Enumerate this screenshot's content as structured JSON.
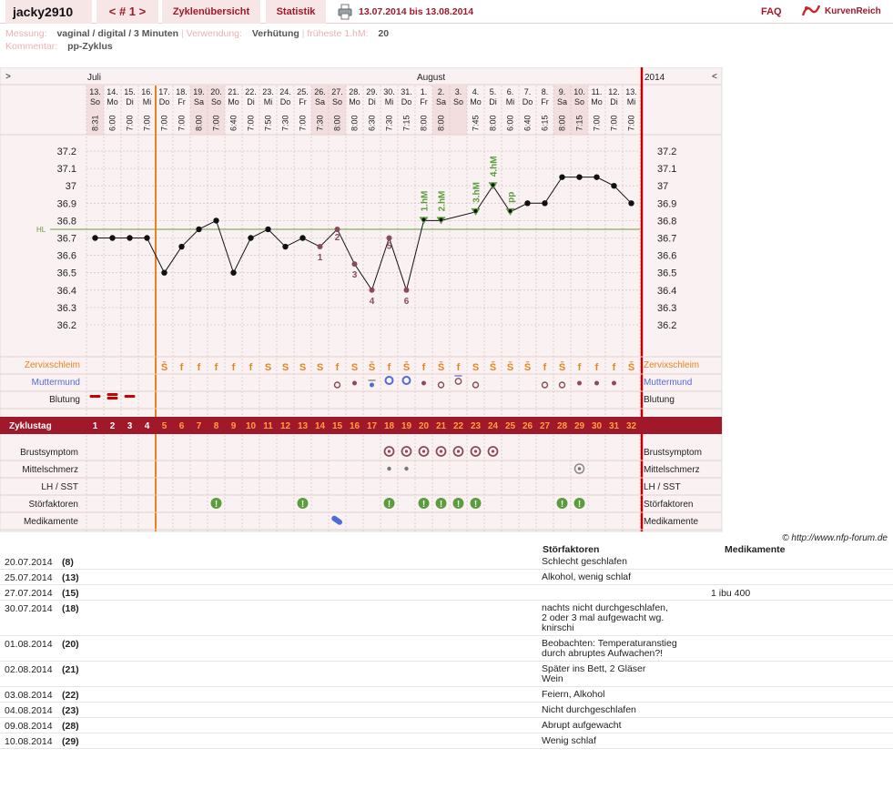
{
  "header": {
    "username": "jacky2910",
    "cycle_nav": "< # 1 >",
    "tab_overview": "Zyklenübersicht",
    "tab_stats": "Statistik",
    "date_range": "13.07.2014 bis 13.08.2014",
    "faq": "FAQ",
    "logo": "KurvenReich",
    "print_icon": "printer-icon"
  },
  "info": {
    "messung_label": "Messung:",
    "messung_value": "vaginal / digital / 3 Minuten",
    "verwendung_label": "Verwendung:",
    "verwendung_value": "Verhütung",
    "hm_label": "früheste 1.hM:",
    "hm_value": "20",
    "kommentar_label": "Kommentar:",
    "kommentar_value": "pp-Zyklus"
  },
  "chart_data": {
    "type": "line",
    "months": {
      "juli": "Juli",
      "august": "August",
      "year": "2014"
    },
    "nav_left": ">",
    "nav_right": "<",
    "days": [
      {
        "d": "13.",
        "w": "So",
        "t": "8:31",
        "temp": 36.7,
        "we": true
      },
      {
        "d": "14.",
        "w": "Mo",
        "t": "6:00",
        "temp": 36.7
      },
      {
        "d": "15.",
        "w": "Di",
        "t": "7:00",
        "temp": 36.7
      },
      {
        "d": "16.",
        "w": "Mi",
        "t": "7:00",
        "temp": 36.7
      },
      {
        "d": "17.",
        "w": "Do",
        "t": "7:00",
        "temp": 36.5
      },
      {
        "d": "18.",
        "w": "Fr",
        "t": "7:00",
        "temp": 36.65
      },
      {
        "d": "19.",
        "w": "Sa",
        "t": "8:00",
        "temp": 36.75,
        "we": true
      },
      {
        "d": "20.",
        "w": "So",
        "t": "7:00",
        "temp": 36.8,
        "we": true
      },
      {
        "d": "21.",
        "w": "Mo",
        "t": "6:40",
        "temp": 36.5
      },
      {
        "d": "22.",
        "w": "Di",
        "t": "7:00",
        "temp": 36.7
      },
      {
        "d": "23.",
        "w": "Mi",
        "t": "7:50",
        "temp": 36.75
      },
      {
        "d": "24.",
        "w": "Do",
        "t": "7:30",
        "temp": 36.65
      },
      {
        "d": "25.",
        "w": "Fr",
        "t": "7:00",
        "temp": 36.7
      },
      {
        "d": "26.",
        "w": "Sa",
        "t": "7:30",
        "temp": 36.65,
        "we": true,
        "n": "1"
      },
      {
        "d": "27.",
        "w": "So",
        "t": "8:00",
        "temp": 36.75,
        "we": true,
        "n": "2"
      },
      {
        "d": "28.",
        "w": "Mo",
        "t": "8:00",
        "temp": 36.55,
        "n": "3"
      },
      {
        "d": "29.",
        "w": "Di",
        "t": "6:30",
        "temp": 36.4,
        "n": "4"
      },
      {
        "d": "30.",
        "w": "Mi",
        "t": "7:30",
        "temp": 36.7,
        "n": "5"
      },
      {
        "d": "31.",
        "w": "Do",
        "t": "7:15",
        "temp": 36.4,
        "n": "6"
      },
      {
        "d": "1.",
        "w": "Fr",
        "t": "8:00",
        "temp": 36.8,
        "hm": "1.hM"
      },
      {
        "d": "2.",
        "w": "Sa",
        "t": "8:00",
        "temp": 36.8,
        "we": true,
        "hm": "2.hM"
      },
      {
        "d": "3.",
        "w": "So",
        "t": "",
        "temp": null,
        "we": true
      },
      {
        "d": "4.",
        "w": "Mo",
        "t": "7:45",
        "temp": 36.85,
        "hm": "3.hM"
      },
      {
        "d": "5.",
        "w": "Di",
        "t": "8:00",
        "temp": 37.0,
        "hm": "4.hM"
      },
      {
        "d": "6.",
        "w": "Mi",
        "t": "6:00",
        "temp": 36.85,
        "hm": "pp"
      },
      {
        "d": "7.",
        "w": "Do",
        "t": "6:40",
        "temp": 36.9
      },
      {
        "d": "8.",
        "w": "Fr",
        "t": "6:15",
        "temp": 36.9
      },
      {
        "d": "9.",
        "w": "Sa",
        "t": "8:00",
        "temp": 37.05,
        "we": true
      },
      {
        "d": "10.",
        "w": "So",
        "t": "7:15",
        "temp": 37.05,
        "we": true
      },
      {
        "d": "11.",
        "w": "Mo",
        "t": "7:00",
        "temp": 37.05
      },
      {
        "d": "12.",
        "w": "Di",
        "t": "7:00",
        "temp": 37.0
      },
      {
        "d": "13.",
        "w": "Mi",
        "t": "7:00",
        "temp": 36.9
      }
    ],
    "y_ticks": [
      "37.2",
      "37.1",
      "37",
      "36.9",
      "36.8",
      "36.7",
      "36.6",
      "36.5",
      "36.4",
      "36.3",
      "36.2"
    ],
    "ylim": [
      36.2,
      37.2
    ],
    "hl_label": "HL",
    "hl_value": 36.75,
    "row_labels": {
      "zervix": "Zervixschleim",
      "mumu": "Muttermund",
      "blutung": "Blutung",
      "zyklustag": "Zyklustag",
      "brust": "Brustsymptom",
      "mittel": "Mittelschmerz",
      "lh": "LH / SST",
      "stoer": "Störfaktoren",
      "medi": "Medikamente"
    },
    "zervix": [
      "",
      "",
      "",
      "",
      "Š",
      "f",
      "f",
      "f",
      "f",
      "f",
      "S",
      "S",
      "S",
      "S",
      "f",
      "S",
      "Š",
      "f",
      "Š",
      "f",
      "Š",
      "f",
      "S",
      "Š",
      "Š",
      "Š",
      "f",
      "Š",
      "f",
      "f",
      "f",
      "Š"
    ],
    "mumu": [
      "",
      "",
      "",
      "",
      "",
      "",
      "",
      "",
      "",
      "",
      "",
      "",
      "",
      "",
      "o",
      "•",
      "•b",
      "Ob",
      "Ob",
      "•",
      "o",
      "ob",
      "o",
      "",
      "",
      "",
      "o",
      "o",
      "•",
      "•",
      "•",
      ""
    ],
    "blutung": [
      1,
      2,
      1,
      0
    ],
    "zyklustag": [
      "1",
      "2",
      "3",
      "4",
      "5",
      "6",
      "7",
      "8",
      "9",
      "10",
      "11",
      "12",
      "13",
      "14",
      "15",
      "16",
      "17",
      "18",
      "19",
      "20",
      "21",
      "22",
      "23",
      "24",
      "25",
      "26",
      "27",
      "28",
      "29",
      "30",
      "31",
      "32"
    ],
    "brust_days": [
      17,
      18,
      19,
      20,
      21,
      22,
      23
    ],
    "mittel": {
      "17": "dot",
      "18": "dot",
      "28": "circle"
    },
    "stoer_days": [
      7,
      12,
      17,
      19,
      20,
      21,
      22,
      27,
      28
    ],
    "medi_days": [
      14
    ],
    "copyright": "© http://www.nfp-forum.de",
    "colors": {
      "red": "#a0192b",
      "orange": "#e8821e",
      "green": "#5a9e3c",
      "blue": "#4f6bd8"
    }
  },
  "notes": {
    "header_stoer": "Störfaktoren",
    "header_medi": "Medikamente",
    "rows": [
      {
        "date": "20.07.2014",
        "cd": "(8)",
        "stoer": "Schlecht geschlafen",
        "medi": ""
      },
      {
        "date": "25.07.2014",
        "cd": "(13)",
        "stoer": "Alkohol, wenig schlaf",
        "medi": ""
      },
      {
        "date": "27.07.2014",
        "cd": "(15)",
        "stoer": "",
        "medi": "1 ibu 400"
      },
      {
        "date": "30.07.2014",
        "cd": "(18)",
        "stoer": "nachts nicht durchgeschlafen,\n2 oder 3 mal aufgewacht wg.\nknirschi",
        "medi": ""
      },
      {
        "date": "01.08.2014",
        "cd": "(20)",
        "stoer": "Beobachten: Temperaturanstieg\ndurch abruptes Aufwachen?!",
        "medi": ""
      },
      {
        "date": "02.08.2014",
        "cd": "(21)",
        "stoer": "Später ins Bett, 2 Gläser\nWein",
        "medi": ""
      },
      {
        "date": "03.08.2014",
        "cd": "(22)",
        "stoer": "Feiern, Alkohol",
        "medi": ""
      },
      {
        "date": "04.08.2014",
        "cd": "(23)",
        "stoer": "Nicht durchgeschlafen",
        "medi": ""
      },
      {
        "date": "09.08.2014",
        "cd": "(28)",
        "stoer": "Abrupt aufgewacht",
        "medi": ""
      },
      {
        "date": "10.08.2014",
        "cd": "(29)",
        "stoer": "Wenig schlaf",
        "medi": ""
      }
    ]
  }
}
